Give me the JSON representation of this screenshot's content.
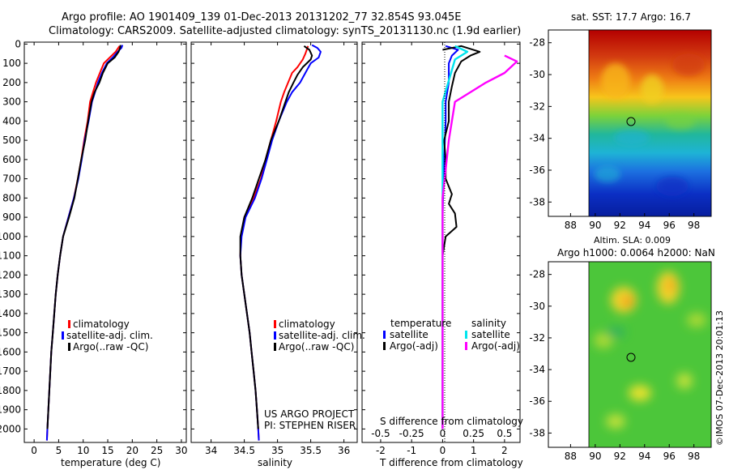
{
  "header": {
    "title_line1": "Argo profile: AO 1901409_139 01-Dec-2013 20131202_77 32.854S 93.045E",
    "title_line2": "Climatology: CARS2009. Satellite-adjusted climatology: synTS_20131130.nc (1.9d earlier)"
  },
  "colors": {
    "climatology": "#ff0000",
    "satellite": "#0000ff",
    "argo": "#000000",
    "salinity_satellite": "#00e5ee",
    "salinity_argo": "#ff00ff"
  },
  "depth_ticks": [
    "0",
    "100",
    "200",
    "300",
    "400",
    "500",
    "600",
    "700",
    "800",
    "900",
    "1000",
    "1100",
    "1200",
    "1300",
    "1400",
    "1500",
    "1600",
    "1700",
    "1800",
    "1900",
    "2000"
  ],
  "chart_data": [
    {
      "type": "line",
      "name": "temperature",
      "xlabel": "temperature (deg C)",
      "ylabel": "",
      "xlim": [
        -2,
        31
      ],
      "ylim": [
        2070,
        -10
      ],
      "xticks": [
        "0",
        "5",
        "10",
        "15",
        "20",
        "25",
        "30"
      ],
      "legend": [
        "climatology",
        "satellite-adj. clim.",
        "Argo(..raw -QC)"
      ],
      "series": [
        {
          "name": "climatology",
          "color": "#ff0000",
          "points": [
            [
              17.4,
              10
            ],
            [
              16.6,
              40
            ],
            [
              15.4,
              70
            ],
            [
              14.2,
              100
            ],
            [
              13.4,
              150
            ],
            [
              12.6,
              200
            ],
            [
              12.0,
              250
            ],
            [
              11.4,
              300
            ],
            [
              10.9,
              400
            ],
            [
              10.2,
              500
            ],
            [
              9.6,
              600
            ],
            [
              8.9,
              700
            ],
            [
              8.1,
              800
            ],
            [
              7.0,
              900
            ],
            [
              5.9,
              1000
            ],
            [
              5.3,
              1100
            ],
            [
              4.8,
              1200
            ],
            [
              4.4,
              1300
            ],
            [
              4.1,
              1400
            ],
            [
              3.8,
              1500
            ],
            [
              3.5,
              1600
            ],
            [
              3.3,
              1700
            ],
            [
              3.1,
              1800
            ],
            [
              2.9,
              1900
            ],
            [
              2.7,
              2000
            ],
            [
              2.6,
              2060
            ]
          ]
        },
        {
          "name": "satellite-adj. clim.",
          "color": "#0000ff",
          "points": [
            [
              18.0,
              5
            ],
            [
              17.8,
              20
            ],
            [
              17.0,
              40
            ],
            [
              16.0,
              70
            ],
            [
              14.8,
              100
            ],
            [
              13.8,
              150
            ],
            [
              13.0,
              200
            ],
            [
              12.4,
              250
            ],
            [
              11.8,
              300
            ],
            [
              11.1,
              400
            ],
            [
              10.3,
              500
            ],
            [
              9.7,
              600
            ],
            [
              9.0,
              700
            ],
            [
              8.1,
              800
            ],
            [
              7.0,
              900
            ],
            [
              5.9,
              1000
            ],
            [
              5.3,
              1100
            ],
            [
              4.8,
              1200
            ],
            [
              4.4,
              1300
            ],
            [
              4.1,
              1400
            ],
            [
              3.8,
              1500
            ],
            [
              3.5,
              1600
            ],
            [
              3.3,
              1700
            ],
            [
              3.1,
              1800
            ],
            [
              2.9,
              1900
            ],
            [
              2.7,
              2000
            ],
            [
              2.6,
              2060
            ]
          ]
        },
        {
          "name": "Argo(..raw -QC)",
          "color": "#000000",
          "points": [
            [
              17.6,
              5
            ],
            [
              17.5,
              20
            ],
            [
              17.2,
              40
            ],
            [
              16.4,
              70
            ],
            [
              15.0,
              100
            ],
            [
              14.0,
              150
            ],
            [
              13.3,
              200
            ],
            [
              12.3,
              250
            ],
            [
              11.7,
              300
            ],
            [
              11.0,
              400
            ],
            [
              10.4,
              500
            ],
            [
              9.6,
              600
            ],
            [
              8.9,
              700
            ],
            [
              8.2,
              800
            ],
            [
              7.1,
              900
            ],
            [
              5.9,
              1000
            ],
            [
              5.3,
              1100
            ],
            [
              4.8,
              1200
            ],
            [
              4.4,
              1300
            ],
            [
              4.1,
              1400
            ],
            [
              3.8,
              1500
            ],
            [
              3.5,
              1600
            ],
            [
              3.3,
              1700
            ],
            [
              3.1,
              1800
            ],
            [
              2.9,
              1900
            ],
            [
              2.7,
              2000
            ]
          ]
        }
      ]
    },
    {
      "type": "line",
      "name": "salinity",
      "xlabel": "salinity",
      "xlim": [
        33.7,
        36.2
      ],
      "ylim": [
        2070,
        -10
      ],
      "xticks": [
        "34",
        "34.5",
        "35",
        "35.5",
        "36"
      ],
      "legend": [
        "climatology",
        "satellite-adj. clim.",
        "Argo(..raw -QC)"
      ],
      "annotations": [
        "US ARGO PROJECT",
        "PI: STEPHEN RISER"
      ],
      "series": [
        {
          "name": "climatology",
          "color": "#ff0000",
          "points": [
            [
              35.46,
              10
            ],
            [
              35.42,
              50
            ],
            [
              35.38,
              80
            ],
            [
              35.3,
              120
            ],
            [
              35.22,
              150
            ],
            [
              35.16,
              200
            ],
            [
              35.1,
              250
            ],
            [
              35.05,
              300
            ],
            [
              34.98,
              400
            ],
            [
              34.9,
              500
            ],
            [
              34.82,
              600
            ],
            [
              34.75,
              700
            ],
            [
              34.64,
              800
            ],
            [
              34.5,
              900
            ],
            [
              34.45,
              1000
            ],
            [
              34.44,
              1100
            ],
            [
              34.46,
              1200
            ],
            [
              34.5,
              1300
            ],
            [
              34.54,
              1400
            ],
            [
              34.58,
              1500
            ],
            [
              34.61,
              1600
            ],
            [
              34.64,
              1700
            ],
            [
              34.67,
              1800
            ],
            [
              34.69,
              1900
            ],
            [
              34.71,
              2000
            ],
            [
              34.72,
              2060
            ]
          ]
        },
        {
          "name": "satellite-adj. clim.",
          "color": "#0000ff",
          "points": [
            [
              35.52,
              5
            ],
            [
              35.6,
              20
            ],
            [
              35.65,
              40
            ],
            [
              35.62,
              70
            ],
            [
              35.5,
              100
            ],
            [
              35.42,
              150
            ],
            [
              35.34,
              200
            ],
            [
              35.22,
              250
            ],
            [
              35.14,
              300
            ],
            [
              35.02,
              400
            ],
            [
              34.92,
              500
            ],
            [
              34.84,
              600
            ],
            [
              34.76,
              700
            ],
            [
              34.66,
              800
            ],
            [
              34.52,
              900
            ],
            [
              34.46,
              1000
            ],
            [
              34.44,
              1100
            ],
            [
              34.46,
              1200
            ],
            [
              34.5,
              1300
            ],
            [
              34.54,
              1400
            ],
            [
              34.58,
              1500
            ],
            [
              34.61,
              1600
            ],
            [
              34.64,
              1700
            ],
            [
              34.67,
              1800
            ],
            [
              34.69,
              1900
            ],
            [
              34.71,
              2000
            ],
            [
              34.72,
              2060
            ]
          ]
        },
        {
          "name": "Argo(..raw -QC)",
          "color": "#000000",
          "points": [
            [
              35.4,
              10
            ],
            [
              35.48,
              30
            ],
            [
              35.52,
              60
            ],
            [
              35.5,
              80
            ],
            [
              35.38,
              120
            ],
            [
              35.3,
              160
            ],
            [
              35.24,
              200
            ],
            [
              35.17,
              250
            ],
            [
              35.12,
              300
            ],
            [
              35.02,
              400
            ],
            [
              34.9,
              500
            ],
            [
              34.82,
              600
            ],
            [
              34.72,
              700
            ],
            [
              34.62,
              800
            ],
            [
              34.5,
              900
            ],
            [
              34.44,
              1000
            ],
            [
              34.44,
              1100
            ],
            [
              34.46,
              1200
            ],
            [
              34.5,
              1300
            ],
            [
              34.54,
              1400
            ],
            [
              34.58,
              1500
            ],
            [
              34.61,
              1600
            ],
            [
              34.64,
              1700
            ],
            [
              34.67,
              1800
            ],
            [
              34.69,
              1900
            ],
            [
              34.71,
              2000
            ]
          ]
        }
      ]
    },
    {
      "type": "line",
      "name": "differences",
      "xlabel": "T difference from climatology",
      "xlabel_top": "S difference from climatology",
      "xlim": [
        -2.6,
        2.5
      ],
      "ylim": [
        2070,
        -10
      ],
      "xticks": [
        "-2",
        "-1",
        "0",
        "1",
        "2"
      ],
      "sticks": [
        "-0.5",
        "-0.25",
        "0",
        "0.25",
        "0.5"
      ],
      "legend_titles": [
        "temperature",
        "salinity"
      ],
      "legend": [
        "satellite",
        "Argo(-adj)",
        "satellite",
        "Argo(-adj)"
      ],
      "series": [
        {
          "name": "temperature satellite",
          "color": "#0000ff",
          "points": [
            [
              0.1,
              10
            ],
            [
              0.5,
              30
            ],
            [
              0.3,
              60
            ],
            [
              0.2,
              100
            ],
            [
              0.2,
              200
            ],
            [
              0.1,
              300
            ],
            [
              0.1,
              400
            ],
            [
              0.05,
              600
            ],
            [
              0.0,
              900
            ],
            [
              0.0,
              1200
            ],
            [
              0.0,
              2000
            ]
          ]
        },
        {
          "name": "temperature Argo(-adj)",
          "color": "#000000",
          "points": [
            [
              0.0,
              30
            ],
            [
              0.6,
              10
            ],
            [
              1.2,
              40
            ],
            [
              0.9,
              60
            ],
            [
              0.6,
              90
            ],
            [
              0.4,
              150
            ],
            [
              0.3,
              220
            ],
            [
              0.2,
              300
            ],
            [
              0.2,
              400
            ],
            [
              0.05,
              500
            ],
            [
              0.1,
              600
            ],
            [
              0.1,
              700
            ],
            [
              0.3,
              780
            ],
            [
              0.2,
              830
            ],
            [
              0.4,
              880
            ],
            [
              0.45,
              950
            ],
            [
              0.1,
              1000
            ],
            [
              0.0,
              1100
            ],
            [
              0.0,
              2000
            ]
          ]
        },
        {
          "name": "salinity satellite",
          "color": "#00e5ee",
          "points": [
            [
              0.1,
              10
            ],
            [
              0.2,
              40
            ],
            [
              0.1,
              80
            ],
            [
              0.0,
              300
            ],
            [
              0.0,
              800
            ],
            [
              0.0,
              1500
            ],
            [
              0.0,
              2000
            ]
          ]
        },
        {
          "name": "salinity Argo(-adj)",
          "color": "#ff00ff",
          "points": [
            [
              0.5,
              60
            ],
            [
              0.6,
              90
            ],
            [
              0.5,
              150
            ],
            [
              0.35,
              200
            ],
            [
              0.2,
              260
            ],
            [
              0.1,
              300
            ],
            [
              0.05,
              500
            ],
            [
              0.0,
              800
            ],
            [
              0.0,
              2000
            ]
          ]
        }
      ]
    }
  ],
  "maps": {
    "sst": {
      "title": "sat. SST: 17.7 Argo: 16.7",
      "lat_ticks": [
        "-28",
        "-30",
        "-32",
        "-34",
        "-36",
        "-38"
      ],
      "lon_ticks": [
        "88",
        "90",
        "92",
        "94",
        "96",
        "98"
      ]
    },
    "sla": {
      "title_line1": "Altim. SLA: 0.009",
      "title_line2": "Argo h1000: 0.0064 h2000: NaN",
      "lat_ticks": [
        "-28",
        "-30",
        "-32",
        "-34",
        "-36",
        "-38"
      ],
      "lon_ticks": [
        "88",
        "90",
        "92",
        "94",
        "96",
        "98"
      ]
    }
  },
  "footer": {
    "stamp": "©IMOS 07-Dec-2013 20:01:13"
  }
}
